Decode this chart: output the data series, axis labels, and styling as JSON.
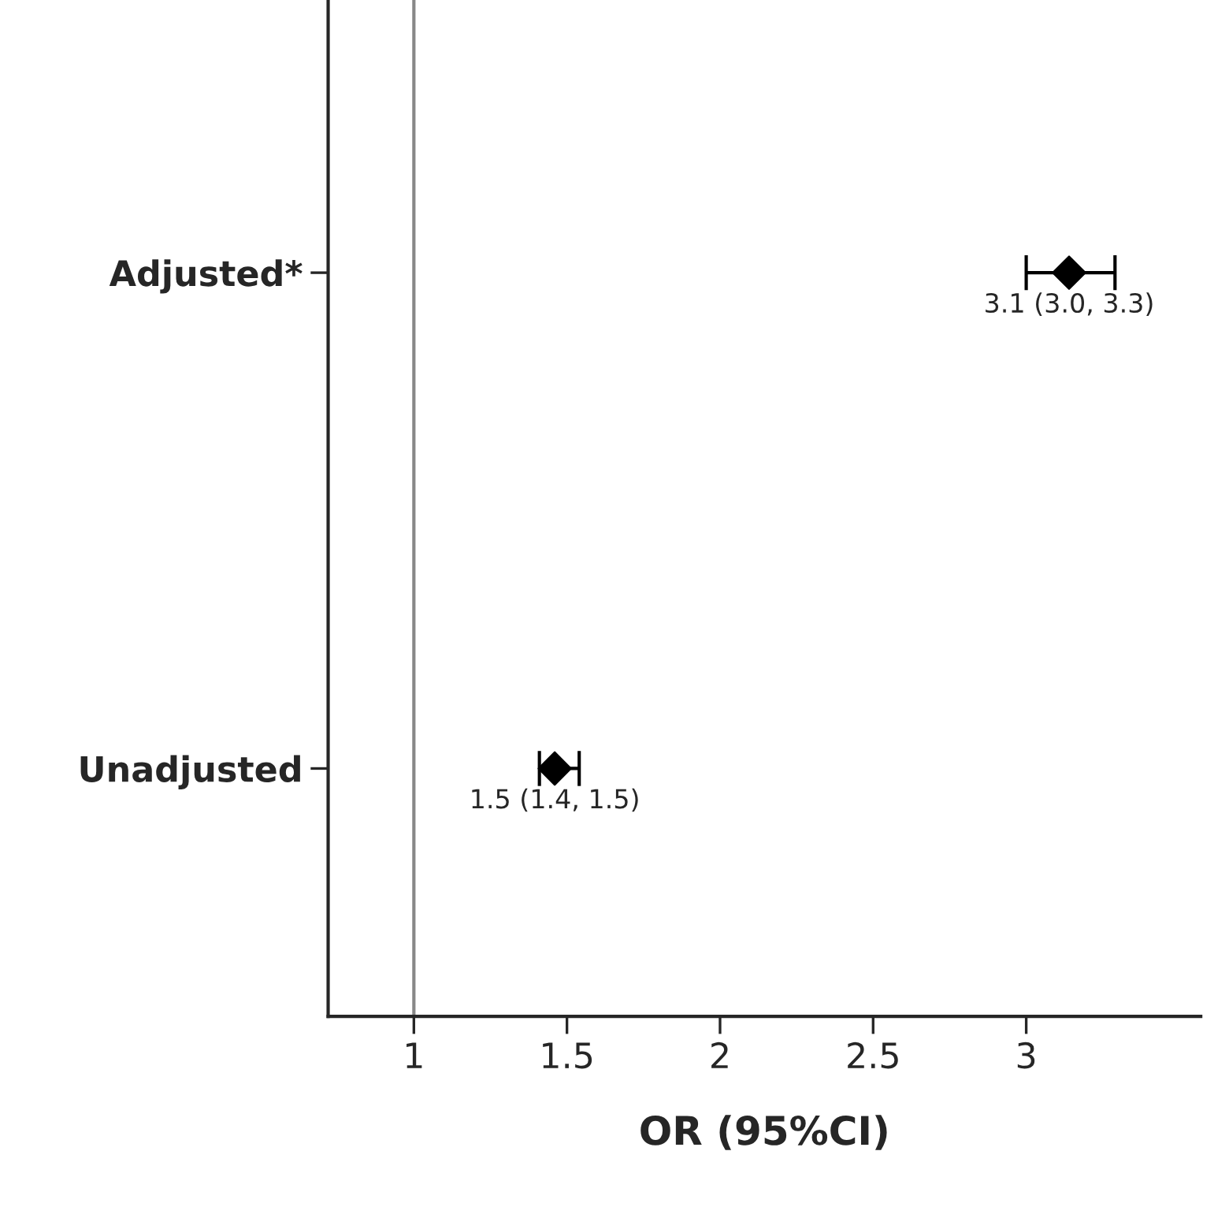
{
  "chart_data": {
    "type": "scatter",
    "orientation": "horizontal",
    "xlabel": "OR (95%CI)",
    "categories": [
      "Adjusted*",
      "Unadjusted"
    ],
    "series": [
      {
        "color": "#000000",
        "values": [
          3.14,
          1.46
        ],
        "errors": [
          [
            3.0,
            3.29
          ],
          [
            1.41,
            1.54
          ]
        ],
        "value_labels": [
          "3.1 (3.0, 3.3)",
          "1.5 (1.4, 1.5)"
        ]
      }
    ],
    "marker": "diamond",
    "xlim": [
      0.72,
      3.57
    ],
    "xticks": [
      1,
      1.5,
      2,
      2.5,
      3
    ],
    "ref_lines": [
      {
        "axis": "x",
        "value": 1,
        "color": "#888888"
      }
    ],
    "grid": false,
    "legend": false
  }
}
